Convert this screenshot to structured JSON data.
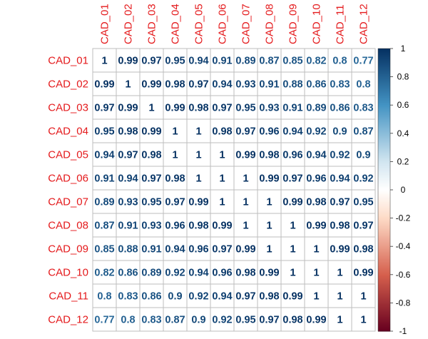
{
  "chart_data": {
    "type": "heatmap",
    "variables": [
      "CAD_01",
      "CAD_02",
      "CAD_03",
      "CAD_04",
      "CAD_05",
      "CAD_06",
      "CAD_07",
      "CAD_08",
      "CAD_09",
      "CAD_10",
      "CAD_11",
      "CAD_12"
    ],
    "matrix": [
      [
        1,
        0.99,
        0.97,
        0.95,
        0.94,
        0.91,
        0.89,
        0.87,
        0.85,
        0.82,
        0.8,
        0.77
      ],
      [
        0.99,
        1,
        0.99,
        0.98,
        0.97,
        0.94,
        0.93,
        0.91,
        0.88,
        0.86,
        0.83,
        0.8
      ],
      [
        0.97,
        0.99,
        1,
        0.99,
        0.98,
        0.97,
        0.95,
        0.93,
        0.91,
        0.89,
        0.86,
        0.83
      ],
      [
        0.95,
        0.98,
        0.99,
        1,
        1,
        0.98,
        0.97,
        0.96,
        0.94,
        0.92,
        0.9,
        0.87
      ],
      [
        0.94,
        0.97,
        0.98,
        1,
        1,
        1,
        0.99,
        0.98,
        0.96,
        0.94,
        0.92,
        0.9
      ],
      [
        0.91,
        0.94,
        0.97,
        0.98,
        1,
        1,
        1,
        0.99,
        0.97,
        0.96,
        0.94,
        0.92
      ],
      [
        0.89,
        0.93,
        0.95,
        0.97,
        0.99,
        1,
        1,
        1,
        0.99,
        0.98,
        0.97,
        0.95
      ],
      [
        0.87,
        0.91,
        0.93,
        0.96,
        0.98,
        0.99,
        1,
        1,
        1,
        0.99,
        0.98,
        0.97
      ],
      [
        0.85,
        0.88,
        0.91,
        0.94,
        0.96,
        0.97,
        0.99,
        1,
        1,
        1,
        0.99,
        0.98
      ],
      [
        0.82,
        0.86,
        0.89,
        0.92,
        0.94,
        0.96,
        0.98,
        0.99,
        1,
        1,
        1,
        0.99
      ],
      [
        0.8,
        0.83,
        0.86,
        0.9,
        0.92,
        0.94,
        0.97,
        0.98,
        0.99,
        1,
        1,
        1
      ],
      [
        0.77,
        0.8,
        0.83,
        0.87,
        0.9,
        0.92,
        0.95,
        0.97,
        0.98,
        0.99,
        1,
        1
      ]
    ],
    "colorbar": {
      "range": [
        -1,
        1
      ],
      "ticks": [
        "1",
        "0.8",
        "0.6",
        "0.4",
        "0.2",
        "0",
        "-0.2",
        "-0.4",
        "-0.6",
        "-0.8",
        "-1"
      ],
      "colors": {
        "neg_end": "#67001f",
        "neg_mid": "#d6604d",
        "neg_light": "#fddbc7",
        "zero": "#ffffff",
        "pos_light": "#d1e5f0",
        "pos_mid": "#4393c3",
        "pos_end": "#053061"
      }
    },
    "label_color": "#e41a1c",
    "grid_color": "#bebebe"
  }
}
